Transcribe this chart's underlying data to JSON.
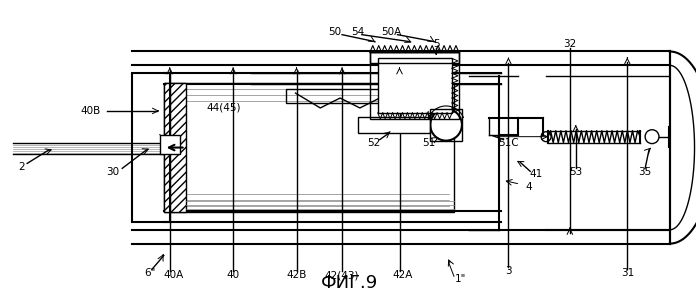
{
  "bg_color": "#ffffff",
  "line_color": "#000000",
  "title": "ФИГ.9",
  "title_fontsize": 13,
  "fig_width": 6.99,
  "fig_height": 2.94,
  "dpi": 100,
  "labels": {
    "1pp": [
      "1\"",
      460,
      12
    ],
    "2": [
      "2",
      18,
      128
    ],
    "3": [
      "3",
      508,
      20
    ],
    "4": [
      "4",
      528,
      105
    ],
    "5": [
      "5",
      435,
      248
    ],
    "6pp": [
      "6\"",
      148,
      20
    ],
    "30": [
      "30",
      110,
      122
    ],
    "31": [
      "31",
      628,
      20
    ],
    "32": [
      "32",
      570,
      248
    ],
    "35": [
      "35",
      645,
      122
    ],
    "40": [
      "40",
      232,
      18
    ],
    "40A": [
      "40A",
      170,
      18
    ],
    "40B": [
      "40B",
      88,
      182
    ],
    "41": [
      "41",
      535,
      120
    ],
    "42A": [
      "42A",
      402,
      18
    ],
    "42B": [
      "42B",
      296,
      18
    ],
    "4243": [
      "42(43)",
      340,
      18
    ],
    "4445": [
      "44(45)",
      222,
      185
    ],
    "50": [
      "50",
      338,
      262
    ],
    "50A": [
      "50A",
      392,
      262
    ],
    "51": [
      "51",
      432,
      152
    ],
    "51C": [
      "51C",
      508,
      152
    ],
    "52": [
      "52",
      376,
      152
    ],
    "53": [
      "53",
      578,
      122
    ],
    "54": [
      "54",
      360,
      262
    ]
  }
}
